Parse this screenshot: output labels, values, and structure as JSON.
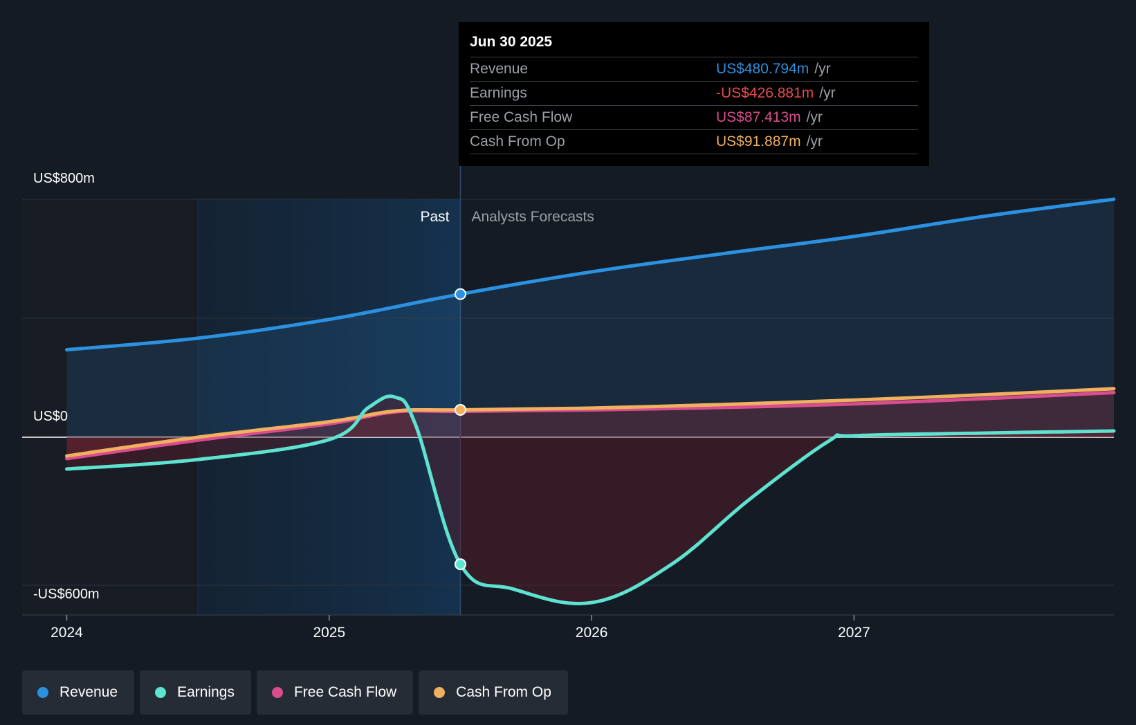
{
  "tooltip": {
    "date": "Jun 30 2025",
    "rows": [
      {
        "name": "Revenue",
        "value": "US$480.794m",
        "unit": "/yr",
        "color": "#2b91e0"
      },
      {
        "name": "Earnings",
        "value": "-US$426.881m",
        "unit": "/yr",
        "color": "#e84a4f"
      },
      {
        "name": "Free Cash Flow",
        "value": "US$87.413m",
        "unit": "/yr",
        "color": "#d84d8e"
      },
      {
        "name": "Cash From Op",
        "value": "US$91.887m",
        "unit": "/yr",
        "color": "#f0b060"
      }
    ]
  },
  "legend": [
    {
      "label": "Revenue",
      "color": "#2b91e0"
    },
    {
      "label": "Earnings",
      "color": "#5ee3d0"
    },
    {
      "label": "Free Cash Flow",
      "color": "#d84d8e"
    },
    {
      "label": "Cash From Op",
      "color": "#f0b060"
    }
  ],
  "chart_data": {
    "type": "line",
    "y_axis_labels": [
      {
        "value": 800,
        "text": "US$800m"
      },
      {
        "value": 0,
        "text": "US$0"
      },
      {
        "value": -600,
        "text": "-US$600m"
      }
    ],
    "ylim": [
      -600,
      800
    ],
    "x_ticks": [
      {
        "value": 2024.0,
        "text": "2024"
      },
      {
        "value": 2025.0,
        "text": "2025"
      },
      {
        "value": 2026.0,
        "text": "2026"
      },
      {
        "value": 2027.0,
        "text": "2027"
      }
    ],
    "xlim": [
      2023.83,
      2027.99
    ],
    "past_label": "Past",
    "forecast_label": "Analysts Forecasts",
    "divider_x": 2025.5,
    "highlight_start_x": 2024.5,
    "series": [
      {
        "name": "Revenue",
        "color": "#2b91e0",
        "points": [
          [
            2024.0,
            294
          ],
          [
            2024.5,
            333
          ],
          [
            2025.0,
            396
          ],
          [
            2025.5,
            481
          ],
          [
            2026.0,
            556
          ],
          [
            2026.5,
            617
          ],
          [
            2027.0,
            675
          ],
          [
            2027.5,
            743
          ],
          [
            2027.99,
            800
          ]
        ],
        "marker": [
          2025.5,
          481
        ]
      },
      {
        "name": "Earnings",
        "color": "#5ee3d0",
        "points": [
          [
            2024.0,
            -107
          ],
          [
            2024.5,
            -75
          ],
          [
            2025.0,
            -8
          ],
          [
            2025.15,
            100
          ],
          [
            2025.25,
            135
          ],
          [
            2025.33,
            40
          ],
          [
            2025.5,
            -427
          ],
          [
            2025.7,
            -510
          ],
          [
            2026.0,
            -556
          ],
          [
            2026.3,
            -430
          ],
          [
            2026.6,
            -210
          ],
          [
            2026.9,
            -15
          ],
          [
            2027.0,
            5
          ],
          [
            2027.5,
            14
          ],
          [
            2027.99,
            21
          ]
        ],
        "marker": [
          2025.5,
          -427
        ]
      },
      {
        "name": "Free Cash Flow",
        "color": "#d84d8e",
        "points": [
          [
            2024.0,
            -72
          ],
          [
            2024.5,
            -10
          ],
          [
            2025.0,
            45
          ],
          [
            2025.25,
            85
          ],
          [
            2025.5,
            87
          ],
          [
            2026.0,
            92
          ],
          [
            2026.5,
            100
          ],
          [
            2027.0,
            112
          ],
          [
            2027.5,
            130
          ],
          [
            2027.99,
            150
          ]
        ]
      },
      {
        "name": "Cash From Op",
        "color": "#f0b060",
        "points": [
          [
            2024.0,
            -63
          ],
          [
            2024.5,
            0
          ],
          [
            2025.0,
            52
          ],
          [
            2025.25,
            88
          ],
          [
            2025.5,
            92
          ],
          [
            2026.0,
            98
          ],
          [
            2026.5,
            110
          ],
          [
            2027.0,
            125
          ],
          [
            2027.5,
            143
          ],
          [
            2027.99,
            163
          ]
        ],
        "marker": [
          2025.5,
          92
        ]
      }
    ]
  }
}
